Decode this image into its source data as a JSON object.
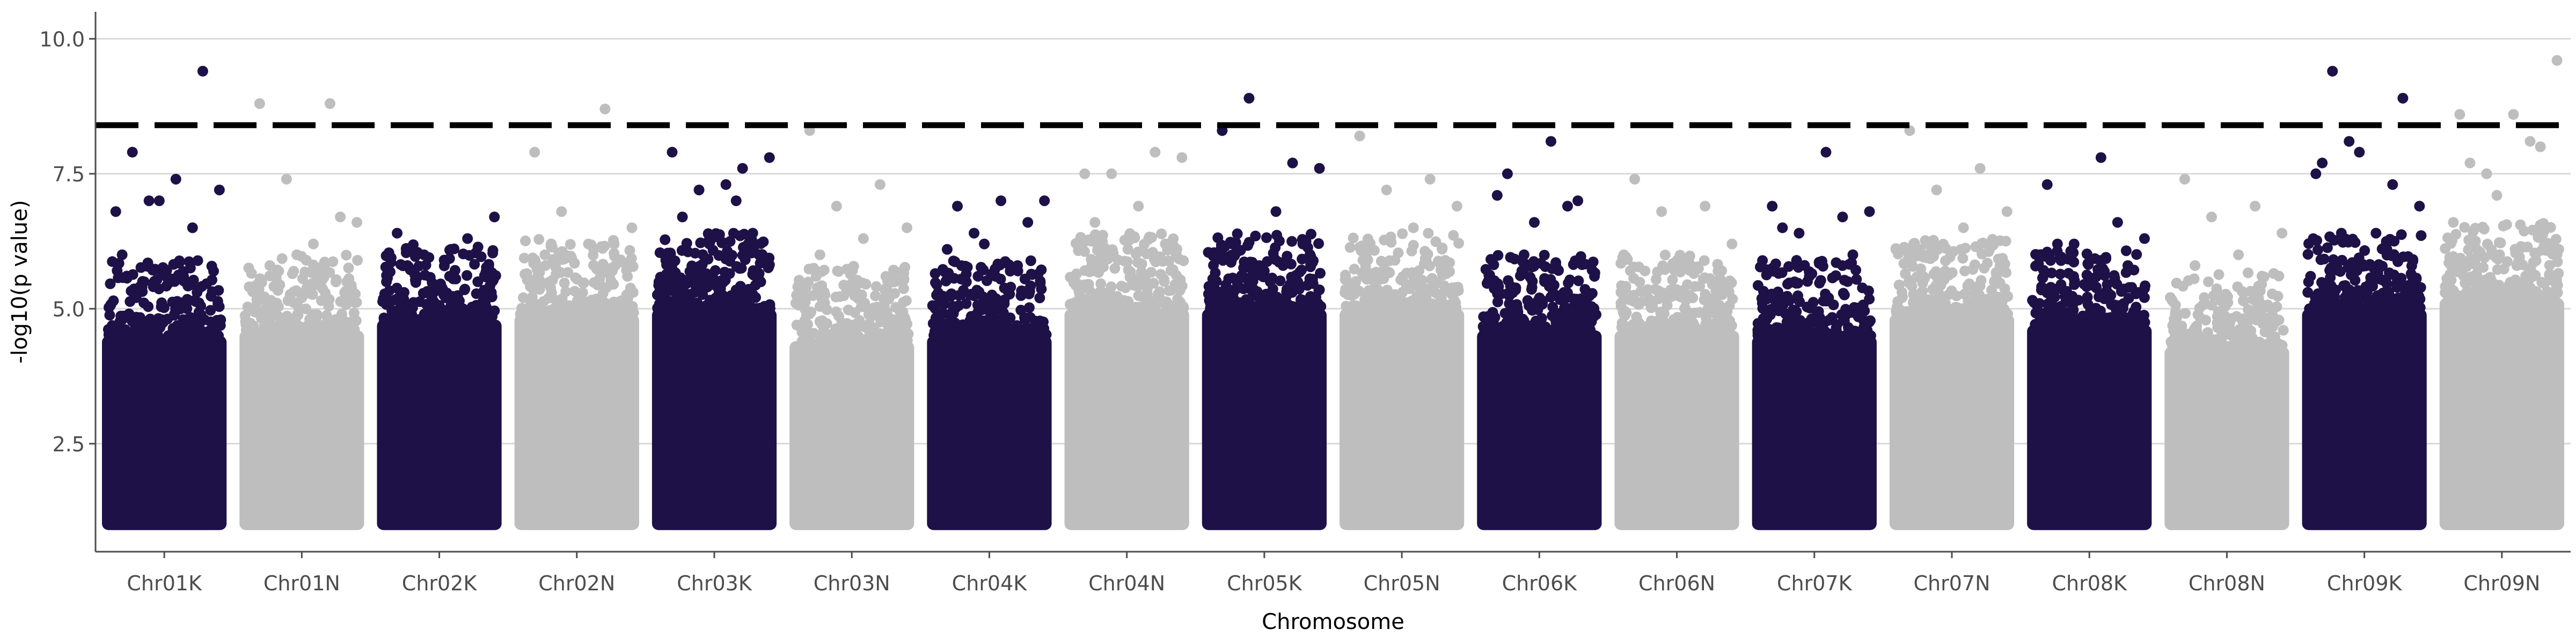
{
  "chart_data": {
    "type": "scatter",
    "title": "",
    "xlabel": "Chromosome",
    "ylabel": "-log10(p value)",
    "ylim": [
      0.5,
      10.5
    ],
    "yticks": [
      2.5,
      5.0,
      7.5,
      10.0
    ],
    "ytick_labels": [
      "2.5",
      "5.0",
      "7.5",
      "10.0"
    ],
    "grid": "horizontal",
    "legend": "none",
    "threshold": 8.4,
    "threshold_style": "dashed black",
    "colors": {
      "odd_chromosomes": "#1d1147",
      "even_chromosomes": "#bebebe",
      "threshold": "#000000",
      "grid": "#d9d9d9",
      "axis": "#4d4d4d"
    },
    "categories": [
      "Chr01K",
      "Chr01N",
      "Chr02K",
      "Chr02N",
      "Chr03K",
      "Chr03N",
      "Chr04K",
      "Chr04N",
      "Chr05K",
      "Chr05N",
      "Chr06K",
      "Chr06N",
      "Chr07K",
      "Chr07N",
      "Chr08K",
      "Chr08N",
      "Chr09K",
      "Chr09N"
    ],
    "series": [
      {
        "category": "Chr01K",
        "dense_top": 4.5,
        "color": "#1d1147",
        "outliers": [
          6.0,
          6.5,
          7.0,
          7.2,
          7.4,
          7.9,
          9.4,
          7.0,
          6.8,
          5.5
        ]
      },
      {
        "category": "Chr01N",
        "dense_top": 4.6,
        "color": "#bebebe",
        "outliers": [
          8.8,
          8.8,
          7.4,
          6.6,
          6.2,
          5.8,
          6.7,
          6.0
        ]
      },
      {
        "category": "Chr02K",
        "dense_top": 4.8,
        "color": "#1d1147",
        "outliers": [
          6.4,
          6.3,
          6.0,
          6.7,
          6.1,
          5.8,
          5.5
        ]
      },
      {
        "category": "Chr02N",
        "dense_top": 4.9,
        "color": "#bebebe",
        "outliers": [
          7.9,
          8.7,
          6.8,
          6.5,
          6.2,
          6.0,
          5.8
        ]
      },
      {
        "category": "Chr03K",
        "dense_top": 5.0,
        "color": "#1d1147",
        "outliers": [
          7.9,
          7.6,
          7.2,
          7.8,
          7.3,
          6.7,
          6.4,
          6.2,
          5.9,
          7.0
        ]
      },
      {
        "category": "Chr03N",
        "dense_top": 4.4,
        "color": "#bebebe",
        "outliers": [
          8.3,
          7.3,
          6.9,
          6.5,
          6.3,
          6.0
        ]
      },
      {
        "category": "Chr04K",
        "dense_top": 4.5,
        "color": "#1d1147",
        "outliers": [
          6.1,
          5.8,
          6.4,
          7.0,
          7.0,
          6.9,
          6.6,
          6.2
        ]
      },
      {
        "category": "Chr04N",
        "dense_top": 5.0,
        "color": "#bebebe",
        "outliers": [
          7.5,
          7.9,
          7.5,
          7.8,
          6.9,
          6.6,
          6.2
        ]
      },
      {
        "category": "Chr05K",
        "dense_top": 5.0,
        "color": "#1d1147",
        "outliers": [
          8.3,
          7.7,
          8.9,
          7.6,
          6.8,
          6.2,
          6.2,
          5.8
        ]
      },
      {
        "category": "Chr05N",
        "dense_top": 5.0,
        "color": "#bebebe",
        "outliers": [
          8.2,
          7.4,
          7.2,
          6.9,
          6.5,
          6.2
        ]
      },
      {
        "category": "Chr06K",
        "dense_top": 4.6,
        "color": "#1d1147",
        "outliers": [
          7.1,
          6.9,
          6.0,
          5.6,
          8.1,
          7.5,
          7.0,
          6.6
        ]
      },
      {
        "category": "Chr06N",
        "dense_top": 4.6,
        "color": "#bebebe",
        "outliers": [
          7.4,
          6.9,
          6.8,
          6.2,
          5.9,
          5.7
        ]
      },
      {
        "category": "Chr07K",
        "dense_top": 4.5,
        "color": "#1d1147",
        "outliers": [
          6.9,
          6.7,
          6.4,
          6.8,
          7.9,
          6.5,
          6.0,
          5.6
        ]
      },
      {
        "category": "Chr07N",
        "dense_top": 4.9,
        "color": "#bebebe",
        "outliers": [
          8.3,
          7.6,
          7.2,
          6.8,
          6.5,
          6.1
        ]
      },
      {
        "category": "Chr08K",
        "dense_top": 4.7,
        "color": "#1d1147",
        "outliers": [
          7.3,
          6.6,
          6.2,
          6.3,
          7.8,
          6.2,
          5.8
        ]
      },
      {
        "category": "Chr08N",
        "dense_top": 4.3,
        "color": "#bebebe",
        "outliers": [
          7.4,
          6.9,
          6.7,
          6.4,
          6.0,
          5.8
        ]
      },
      {
        "category": "Chr09K",
        "dense_top": 5.0,
        "color": "#1d1147",
        "outliers": [
          7.7,
          7.3,
          8.1,
          6.9,
          6.4,
          9.4,
          8.9,
          7.9,
          7.5,
          6.2
        ]
      },
      {
        "category": "Chr09N",
        "dense_top": 5.2,
        "color": "#bebebe",
        "outliers": [
          8.6,
          8.1,
          7.5,
          9.6,
          8.6,
          7.7,
          8.0,
          7.1,
          6.6
        ]
      }
    ]
  }
}
